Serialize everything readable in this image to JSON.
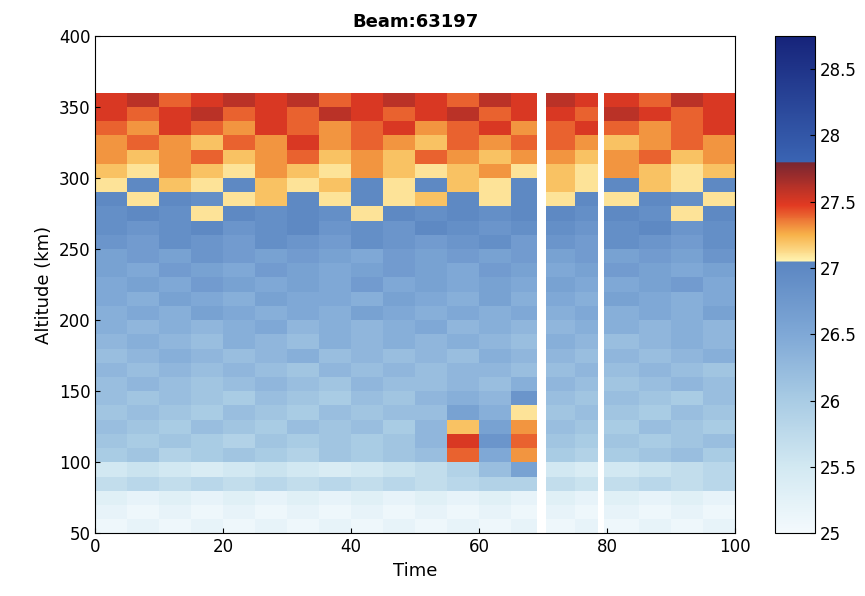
{
  "chart_data": {
    "type": "heatmap",
    "title": "Beam:63197",
    "x_label": "Time",
    "y_label": "Altitude (km)",
    "xlim": [
      0,
      100
    ],
    "xticks": [
      0,
      20,
      40,
      60,
      80,
      100
    ],
    "ylim": [
      50,
      400
    ],
    "yticks": [
      50,
      100,
      150,
      200,
      250,
      300,
      350,
      400
    ],
    "colorbar_lim": [
      25,
      28.75
    ],
    "colorbar_ticks": [
      25,
      25.5,
      26,
      26.5,
      27,
      27.5,
      28,
      28.5
    ],
    "x_edges": [
      0,
      5,
      10,
      15,
      20,
      25,
      30,
      35,
      40,
      45,
      50,
      55,
      60,
      65,
      69,
      70.5,
      75,
      78.5,
      79.5,
      85,
      90,
      95,
      100
    ],
    "y_edges": [
      50,
      60,
      70,
      80,
      90,
      100,
      110,
      120,
      130,
      140,
      150,
      160,
      170,
      180,
      190,
      200,
      210,
      220,
      230,
      240,
      250,
      260,
      270,
      280,
      290,
      300,
      310,
      320,
      330,
      340,
      350,
      360
    ],
    "cells": [
      [
        25.1,
        25.2,
        25.1,
        25.2,
        25.1,
        25.2,
        25.1,
        25.2,
        25.1,
        25.2,
        25.1,
        25.2,
        25.1,
        25.2,
        null,
        25.1,
        25.2,
        null,
        25.1,
        25.2,
        25.1,
        25.2
      ],
      [
        25.2,
        25.1,
        25.2,
        25.1,
        25.2,
        25.1,
        25.2,
        25.1,
        25.2,
        25.1,
        25.2,
        25.1,
        25.2,
        25.1,
        null,
        25.2,
        25.1,
        null,
        25.2,
        25.1,
        25.2,
        25.1
      ],
      [
        25.3,
        25.2,
        25.3,
        25.2,
        25.3,
        25.2,
        25.3,
        25.2,
        25.3,
        25.2,
        25.3,
        25.2,
        25.3,
        25.2,
        null,
        25.3,
        25.2,
        null,
        25.3,
        25.2,
        25.3,
        25.2
      ],
      [
        25.7,
        25.8,
        25.7,
        25.8,
        25.7,
        25.8,
        25.7,
        25.8,
        25.7,
        25.8,
        25.7,
        25.8,
        25.9,
        25.9,
        null,
        25.7,
        25.6,
        null,
        25.7,
        25.8,
        25.7,
        25.8
      ],
      [
        25.5,
        25.6,
        25.5,
        25.4,
        25.5,
        25.6,
        25.5,
        25.4,
        25.5,
        25.6,
        25.7,
        25.9,
        26.2,
        26.6,
        null,
        25.5,
        25.4,
        null,
        25.5,
        25.6,
        25.7,
        25.8
      ],
      [
        26.0,
        26.1,
        25.9,
        26.0,
        26.1,
        26.0,
        25.9,
        26.1,
        26.0,
        26.1,
        26.2,
        27.4,
        26.5,
        27.3,
        null,
        26.0,
        25.9,
        null,
        26.0,
        26.1,
        26.2,
        26.0
      ],
      [
        26.1,
        26.0,
        26.1,
        26.0,
        25.9,
        26.1,
        26.0,
        26.1,
        26.0,
        26.1,
        26.3,
        27.5,
        26.8,
        27.4,
        null,
        26.1,
        26.0,
        null,
        26.1,
        26.0,
        26.1,
        26.2
      ],
      [
        26.2,
        26.1,
        26.0,
        26.2,
        26.1,
        26.0,
        26.2,
        26.1,
        26.2,
        26.0,
        26.3,
        27.2,
        26.6,
        27.3,
        null,
        26.2,
        26.1,
        null,
        26.0,
        26.2,
        26.1,
        26.0
      ],
      [
        26.1,
        26.2,
        26.1,
        26.0,
        26.2,
        26.1,
        26.0,
        26.2,
        26.1,
        26.2,
        26.2,
        26.6,
        26.4,
        27.1,
        null,
        26.1,
        26.2,
        null,
        26.1,
        26.0,
        26.2,
        26.1
      ],
      [
        26.2,
        26.1,
        26.2,
        26.1,
        26.0,
        26.2,
        26.1,
        26.0,
        26.2,
        26.1,
        26.3,
        26.4,
        26.3,
        26.8,
        null,
        26.2,
        26.1,
        null,
        26.2,
        26.1,
        26.0,
        26.2
      ],
      [
        26.2,
        26.3,
        26.2,
        26.1,
        26.2,
        26.3,
        26.2,
        26.1,
        26.3,
        26.2,
        26.2,
        26.3,
        26.2,
        26.4,
        null,
        26.3,
        26.2,
        null,
        26.1,
        26.2,
        26.3,
        26.2
      ],
      [
        26.3,
        26.2,
        26.3,
        26.2,
        26.3,
        26.2,
        26.1,
        26.3,
        26.2,
        26.3,
        26.2,
        26.3,
        26.3,
        26.2,
        null,
        26.2,
        26.3,
        null,
        26.2,
        26.3,
        26.2,
        26.1
      ],
      [
        26.2,
        26.3,
        26.4,
        26.3,
        26.2,
        26.3,
        26.4,
        26.2,
        26.3,
        26.2,
        26.3,
        26.2,
        26.4,
        26.3,
        null,
        26.3,
        26.2,
        null,
        26.3,
        26.2,
        26.3,
        26.4
      ],
      [
        26.3,
        26.4,
        26.3,
        26.2,
        26.4,
        26.3,
        26.2,
        26.4,
        26.3,
        26.4,
        26.3,
        26.4,
        26.3,
        26.2,
        null,
        26.4,
        26.3,
        null,
        26.2,
        26.3,
        26.4,
        26.3
      ],
      [
        26.4,
        26.3,
        26.4,
        26.3,
        26.4,
        26.5,
        26.3,
        26.4,
        26.3,
        26.4,
        26.5,
        26.3,
        26.4,
        26.3,
        null,
        26.3,
        26.4,
        null,
        26.4,
        26.3,
        26.4,
        26.3
      ],
      [
        26.4,
        26.5,
        26.4,
        26.6,
        26.5,
        26.4,
        26.5,
        26.4,
        26.6,
        26.5,
        26.4,
        26.5,
        26.4,
        26.5,
        null,
        26.4,
        26.5,
        null,
        26.4,
        26.5,
        26.4,
        26.6
      ],
      [
        26.5,
        26.4,
        26.6,
        26.5,
        26.4,
        26.6,
        26.5,
        26.5,
        26.4,
        26.6,
        26.5,
        26.4,
        26.6,
        26.4,
        null,
        26.5,
        26.4,
        null,
        26.6,
        26.5,
        26.4,
        26.5
      ],
      [
        26.5,
        26.6,
        26.5,
        26.7,
        26.6,
        26.5,
        26.6,
        26.5,
        26.7,
        26.5,
        26.6,
        26.5,
        26.6,
        26.5,
        null,
        26.6,
        26.5,
        null,
        26.5,
        26.6,
        26.7,
        26.5
      ],
      [
        26.6,
        26.5,
        26.7,
        26.6,
        26.5,
        26.7,
        26.6,
        26.5,
        26.6,
        26.7,
        26.6,
        26.5,
        26.7,
        26.6,
        null,
        26.5,
        26.6,
        null,
        26.7,
        26.6,
        26.5,
        26.6
      ],
      [
        26.6,
        26.7,
        26.6,
        26.8,
        26.7,
        26.6,
        26.7,
        26.6,
        26.5,
        26.7,
        26.6,
        26.7,
        26.6,
        26.7,
        null,
        26.6,
        26.7,
        null,
        26.6,
        26.7,
        26.6,
        26.8
      ],
      [
        26.8,
        26.7,
        26.9,
        26.8,
        26.7,
        26.9,
        26.8,
        26.7,
        26.9,
        26.8,
        26.7,
        26.8,
        26.9,
        26.7,
        null,
        26.8,
        26.7,
        null,
        26.9,
        26.8,
        26.7,
        26.9
      ],
      [
        26.9,
        26.8,
        26.9,
        27.0,
        26.8,
        26.9,
        27.0,
        26.8,
        26.9,
        26.8,
        27.0,
        26.9,
        26.8,
        26.9,
        null,
        26.9,
        26.8,
        null,
        26.9,
        27.0,
        26.8,
        26.9
      ],
      [
        26.9,
        27.0,
        26.9,
        27.1,
        27.0,
        26.9,
        27.0,
        26.9,
        27.1,
        27.0,
        26.9,
        27.0,
        26.9,
        27.0,
        null,
        27.0,
        26.9,
        null,
        27.0,
        26.9,
        27.1,
        27.0
      ],
      [
        27.0,
        27.1,
        27.0,
        26.9,
        27.1,
        27.2,
        27.0,
        27.1,
        27.0,
        27.1,
        27.2,
        27.0,
        27.1,
        27.0,
        null,
        27.1,
        27.0,
        null,
        27.1,
        27.0,
        26.9,
        27.1
      ],
      [
        27.1,
        27.0,
        27.2,
        27.1,
        27.0,
        27.2,
        27.1,
        27.2,
        27.0,
        27.1,
        27.0,
        27.2,
        27.1,
        27.0,
        null,
        27.2,
        27.1,
        null,
        27.0,
        27.2,
        27.1,
        27.0
      ],
      [
        27.2,
        27.1,
        27.3,
        27.2,
        27.1,
        27.3,
        27.2,
        27.1,
        27.3,
        27.2,
        27.1,
        27.2,
        27.3,
        27.1,
        null,
        27.2,
        27.1,
        null,
        27.3,
        27.2,
        27.1,
        27.2
      ],
      [
        27.3,
        27.2,
        27.3,
        27.4,
        27.2,
        27.3,
        27.4,
        27.2,
        27.3,
        27.2,
        27.4,
        27.3,
        27.2,
        27.3,
        null,
        27.3,
        27.2,
        null,
        27.3,
        27.4,
        27.2,
        27.3
      ],
      [
        27.3,
        27.4,
        27.3,
        27.2,
        27.4,
        27.3,
        27.5,
        27.3,
        27.4,
        27.3,
        27.2,
        27.4,
        27.3,
        27.4,
        null,
        27.4,
        27.3,
        null,
        27.2,
        27.3,
        27.4,
        27.3
      ],
      [
        27.4,
        27.3,
        27.5,
        27.4,
        27.3,
        27.5,
        27.4,
        27.3,
        27.4,
        27.5,
        27.3,
        27.4,
        27.5,
        27.3,
        null,
        27.4,
        27.5,
        null,
        27.4,
        27.3,
        27.4,
        27.5
      ],
      [
        27.5,
        27.4,
        27.5,
        27.6,
        27.4,
        27.5,
        27.4,
        27.6,
        27.5,
        27.4,
        27.5,
        27.6,
        27.4,
        27.5,
        null,
        27.5,
        27.4,
        null,
        27.6,
        27.5,
        27.4,
        27.5
      ],
      [
        27.5,
        27.6,
        27.4,
        27.5,
        27.6,
        27.5,
        27.6,
        27.4,
        27.5,
        27.6,
        27.5,
        27.4,
        27.6,
        27.5,
        null,
        27.6,
        27.5,
        null,
        27.5,
        27.4,
        27.6,
        27.5
      ]
    ]
  }
}
